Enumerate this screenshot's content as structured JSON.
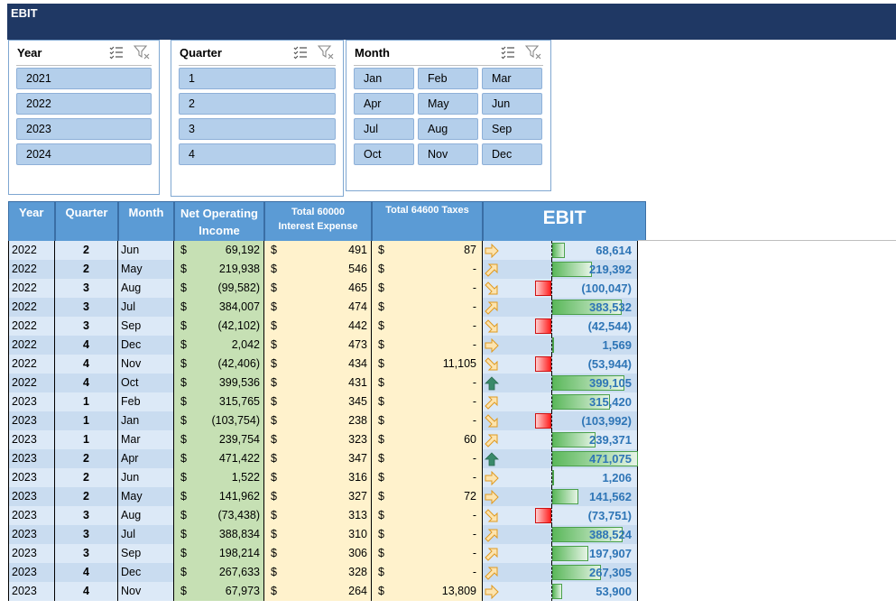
{
  "title": "EBIT",
  "slicers": {
    "year": {
      "title": "Year",
      "items": [
        "2021",
        "2022",
        "2023",
        "2024"
      ]
    },
    "quarter": {
      "title": "Quarter",
      "items": [
        "1",
        "2",
        "3",
        "4"
      ]
    },
    "month": {
      "title": "Month",
      "items": [
        "Jan",
        "Feb",
        "Mar",
        "Apr",
        "May",
        "Jun",
        "Jul",
        "Aug",
        "Sep",
        "Oct",
        "Nov",
        "Dec"
      ]
    }
  },
  "table": {
    "headers": {
      "year": "Year",
      "quarter": "Quarter",
      "month": "Month",
      "noi_1": "Net Operating",
      "noi_2": "Income",
      "interest_1": "Total 60000",
      "interest_2": "Interest Expense",
      "taxes": "Total 64600 Taxes",
      "ebit": "EBIT"
    },
    "currency": "$",
    "rows": [
      {
        "year": "2022",
        "quarter": "2",
        "month": "Jun",
        "noi": "69,192",
        "interest": "491",
        "taxes": "87",
        "ebit": "68,614",
        "ebit_value": 68614,
        "arrow": "right"
      },
      {
        "year": "2022",
        "quarter": "2",
        "month": "May",
        "noi": "219,938",
        "interest": "546",
        "taxes": "-",
        "ebit": "219,392",
        "ebit_value": 219392,
        "arrow": "up-right"
      },
      {
        "year": "2022",
        "quarter": "3",
        "month": "Aug",
        "noi": "(99,582)",
        "interest": "465",
        "taxes": "-",
        "ebit": "(100,047)",
        "ebit_value": -100047,
        "arrow": "down-right"
      },
      {
        "year": "2022",
        "quarter": "3",
        "month": "Jul",
        "noi": "384,007",
        "interest": "474",
        "taxes": "-",
        "ebit": "383,532",
        "ebit_value": 383532,
        "arrow": "up-right"
      },
      {
        "year": "2022",
        "quarter": "3",
        "month": "Sep",
        "noi": "(42,102)",
        "interest": "442",
        "taxes": "-",
        "ebit": "(42,544)",
        "ebit_value": -42544,
        "arrow": "down-right"
      },
      {
        "year": "2022",
        "quarter": "4",
        "month": "Dec",
        "noi": "2,042",
        "interest": "473",
        "taxes": "-",
        "ebit": "1,569",
        "ebit_value": 1569,
        "arrow": "right"
      },
      {
        "year": "2022",
        "quarter": "4",
        "month": "Nov",
        "noi": "(42,406)",
        "interest": "434",
        "taxes": "11,105",
        "ebit": "(53,944)",
        "ebit_value": -53944,
        "arrow": "down-right"
      },
      {
        "year": "2022",
        "quarter": "4",
        "month": "Oct",
        "noi": "399,536",
        "interest": "431",
        "taxes": "-",
        "ebit": "399,105",
        "ebit_value": 399105,
        "arrow": "up"
      },
      {
        "year": "2023",
        "quarter": "1",
        "month": "Feb",
        "noi": "315,765",
        "interest": "345",
        "taxes": "-",
        "ebit": "315,420",
        "ebit_value": 315420,
        "arrow": "up-right"
      },
      {
        "year": "2023",
        "quarter": "1",
        "month": "Jan",
        "noi": "(103,754)",
        "interest": "238",
        "taxes": "-",
        "ebit": "(103,992)",
        "ebit_value": -103992,
        "arrow": "down-right"
      },
      {
        "year": "2023",
        "quarter": "1",
        "month": "Mar",
        "noi": "239,754",
        "interest": "323",
        "taxes": "60",
        "ebit": "239,371",
        "ebit_value": 239371,
        "arrow": "up-right"
      },
      {
        "year": "2023",
        "quarter": "2",
        "month": "Apr",
        "noi": "471,422",
        "interest": "347",
        "taxes": "-",
        "ebit": "471,075",
        "ebit_value": 471075,
        "arrow": "up"
      },
      {
        "year": "2023",
        "quarter": "2",
        "month": "Jun",
        "noi": "1,522",
        "interest": "316",
        "taxes": "-",
        "ebit": "1,206",
        "ebit_value": 1206,
        "arrow": "right"
      },
      {
        "year": "2023",
        "quarter": "2",
        "month": "May",
        "noi": "141,962",
        "interest": "327",
        "taxes": "72",
        "ebit": "141,562",
        "ebit_value": 141562,
        "arrow": "right"
      },
      {
        "year": "2023",
        "quarter": "3",
        "month": "Aug",
        "noi": "(73,438)",
        "interest": "313",
        "taxes": "-",
        "ebit": "(73,751)",
        "ebit_value": -73751,
        "arrow": "down-right"
      },
      {
        "year": "2023",
        "quarter": "3",
        "month": "Jul",
        "noi": "388,834",
        "interest": "310",
        "taxes": "-",
        "ebit": "388,524",
        "ebit_value": 388524,
        "arrow": "up-right"
      },
      {
        "year": "2023",
        "quarter": "3",
        "month": "Sep",
        "noi": "198,214",
        "interest": "306",
        "taxes": "-",
        "ebit": "197,907",
        "ebit_value": 197907,
        "arrow": "up-right"
      },
      {
        "year": "2023",
        "quarter": "4",
        "month": "Dec",
        "noi": "267,633",
        "interest": "328",
        "taxes": "-",
        "ebit": "267,305",
        "ebit_value": 267305,
        "arrow": "up-right"
      },
      {
        "year": "2023",
        "quarter": "4",
        "month": "Nov",
        "noi": "67,973",
        "interest": "264",
        "taxes": "13,809",
        "ebit": "53,900",
        "ebit_value": 53900,
        "arrow": "right"
      }
    ]
  },
  "colors": {
    "title_bar": "#1f3864",
    "header": "#5b9bd5",
    "slicer_item": "#b4cfeb",
    "noi_fill": "#c6e0b4",
    "expense_fill": "#fff2cc",
    "ebit_text": "#2e75b6",
    "bar_positive": "#5bb85b",
    "bar_negative": "#ff2020",
    "arrow_up": "#3a8a6a",
    "arrow_other": "#f0b040"
  }
}
